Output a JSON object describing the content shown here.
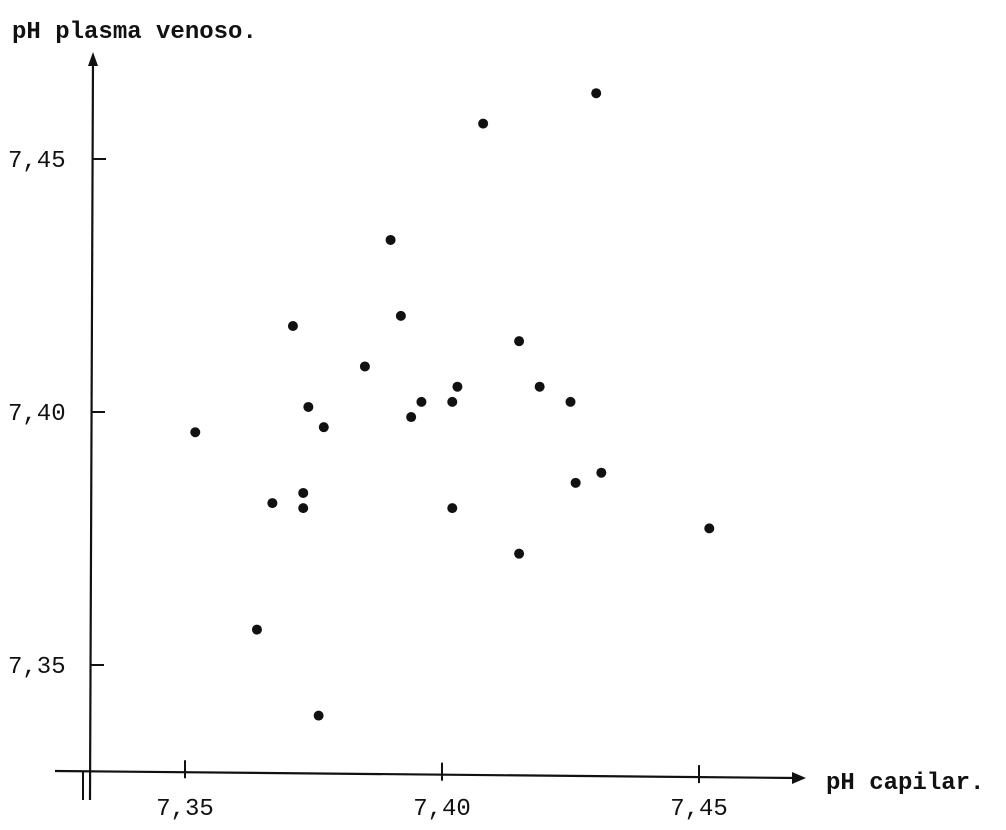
{
  "chart_data": {
    "type": "scatter",
    "title": "",
    "xlabel": "pH capilar.",
    "ylabel": "pH plasma venoso.",
    "xlim": [
      7.33,
      7.47
    ],
    "ylim": [
      7.33,
      7.47
    ],
    "x_ticks": [
      {
        "value": 7.35,
        "label": "7,35"
      },
      {
        "value": 7.4,
        "label": "7,40"
      },
      {
        "value": 7.45,
        "label": "7,45"
      }
    ],
    "y_ticks": [
      {
        "value": 7.35,
        "label": "7,35"
      },
      {
        "value": 7.4,
        "label": "7,40"
      },
      {
        "value": 7.45,
        "label": "7,45"
      }
    ],
    "grid": false,
    "legend": "none",
    "series": [
      {
        "points": [
          {
            "x": 7.352,
            "y": 7.396
          },
          {
            "x": 7.364,
            "y": 7.357
          },
          {
            "x": 7.367,
            "y": 7.382
          },
          {
            "x": 7.371,
            "y": 7.417
          },
          {
            "x": 7.373,
            "y": 7.381
          },
          {
            "x": 7.373,
            "y": 7.384
          },
          {
            "x": 7.374,
            "y": 7.401
          },
          {
            "x": 7.376,
            "y": 7.34
          },
          {
            "x": 7.377,
            "y": 7.397
          },
          {
            "x": 7.385,
            "y": 7.409
          },
          {
            "x": 7.39,
            "y": 7.434
          },
          {
            "x": 7.392,
            "y": 7.419
          },
          {
            "x": 7.394,
            "y": 7.399
          },
          {
            "x": 7.396,
            "y": 7.402
          },
          {
            "x": 7.402,
            "y": 7.381
          },
          {
            "x": 7.402,
            "y": 7.402
          },
          {
            "x": 7.403,
            "y": 7.405
          },
          {
            "x": 7.408,
            "y": 7.457
          },
          {
            "x": 7.415,
            "y": 7.372
          },
          {
            "x": 7.415,
            "y": 7.414
          },
          {
            "x": 7.419,
            "y": 7.405
          },
          {
            "x": 7.425,
            "y": 7.402
          },
          {
            "x": 7.426,
            "y": 7.386
          },
          {
            "x": 7.43,
            "y": 7.463
          },
          {
            "x": 7.431,
            "y": 7.388
          },
          {
            "x": 7.452,
            "y": 7.377
          }
        ]
      }
    ]
  }
}
